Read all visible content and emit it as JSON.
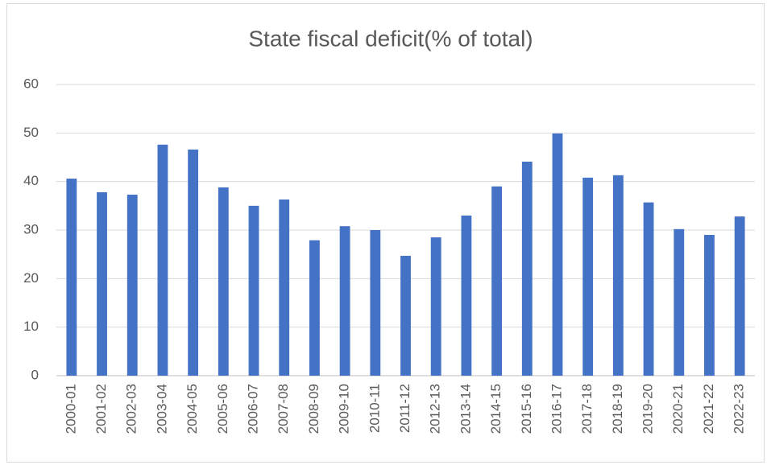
{
  "chart_data": {
    "type": "bar",
    "title": "State fiscal deficit(% of total)",
    "categories": [
      "2000-01",
      "2001-02",
      "2002-03",
      "2003-04",
      "2004-05",
      "2005-06",
      "2006-07",
      "2007-08",
      "2008-09",
      "2009-10",
      "2010-11",
      "2011-12",
      "2012-13",
      "2013-14",
      "2014-15",
      "2015-16",
      "2016-17",
      "2017-18",
      "2018-19",
      "2019-20",
      "2020-21",
      "2021-22",
      "2022-23"
    ],
    "values": [
      40.6,
      37.8,
      37.3,
      47.6,
      46.6,
      38.8,
      35.0,
      36.3,
      27.9,
      30.8,
      30.0,
      24.7,
      28.5,
      33.0,
      39.0,
      44.1,
      49.9,
      40.8,
      41.3,
      35.7,
      30.2,
      29.0,
      32.8
    ],
    "color": "#4472c4",
    "ylim": [
      0,
      60
    ],
    "yticks": [
      0,
      10,
      20,
      30,
      40,
      50,
      60
    ],
    "grid": true
  }
}
